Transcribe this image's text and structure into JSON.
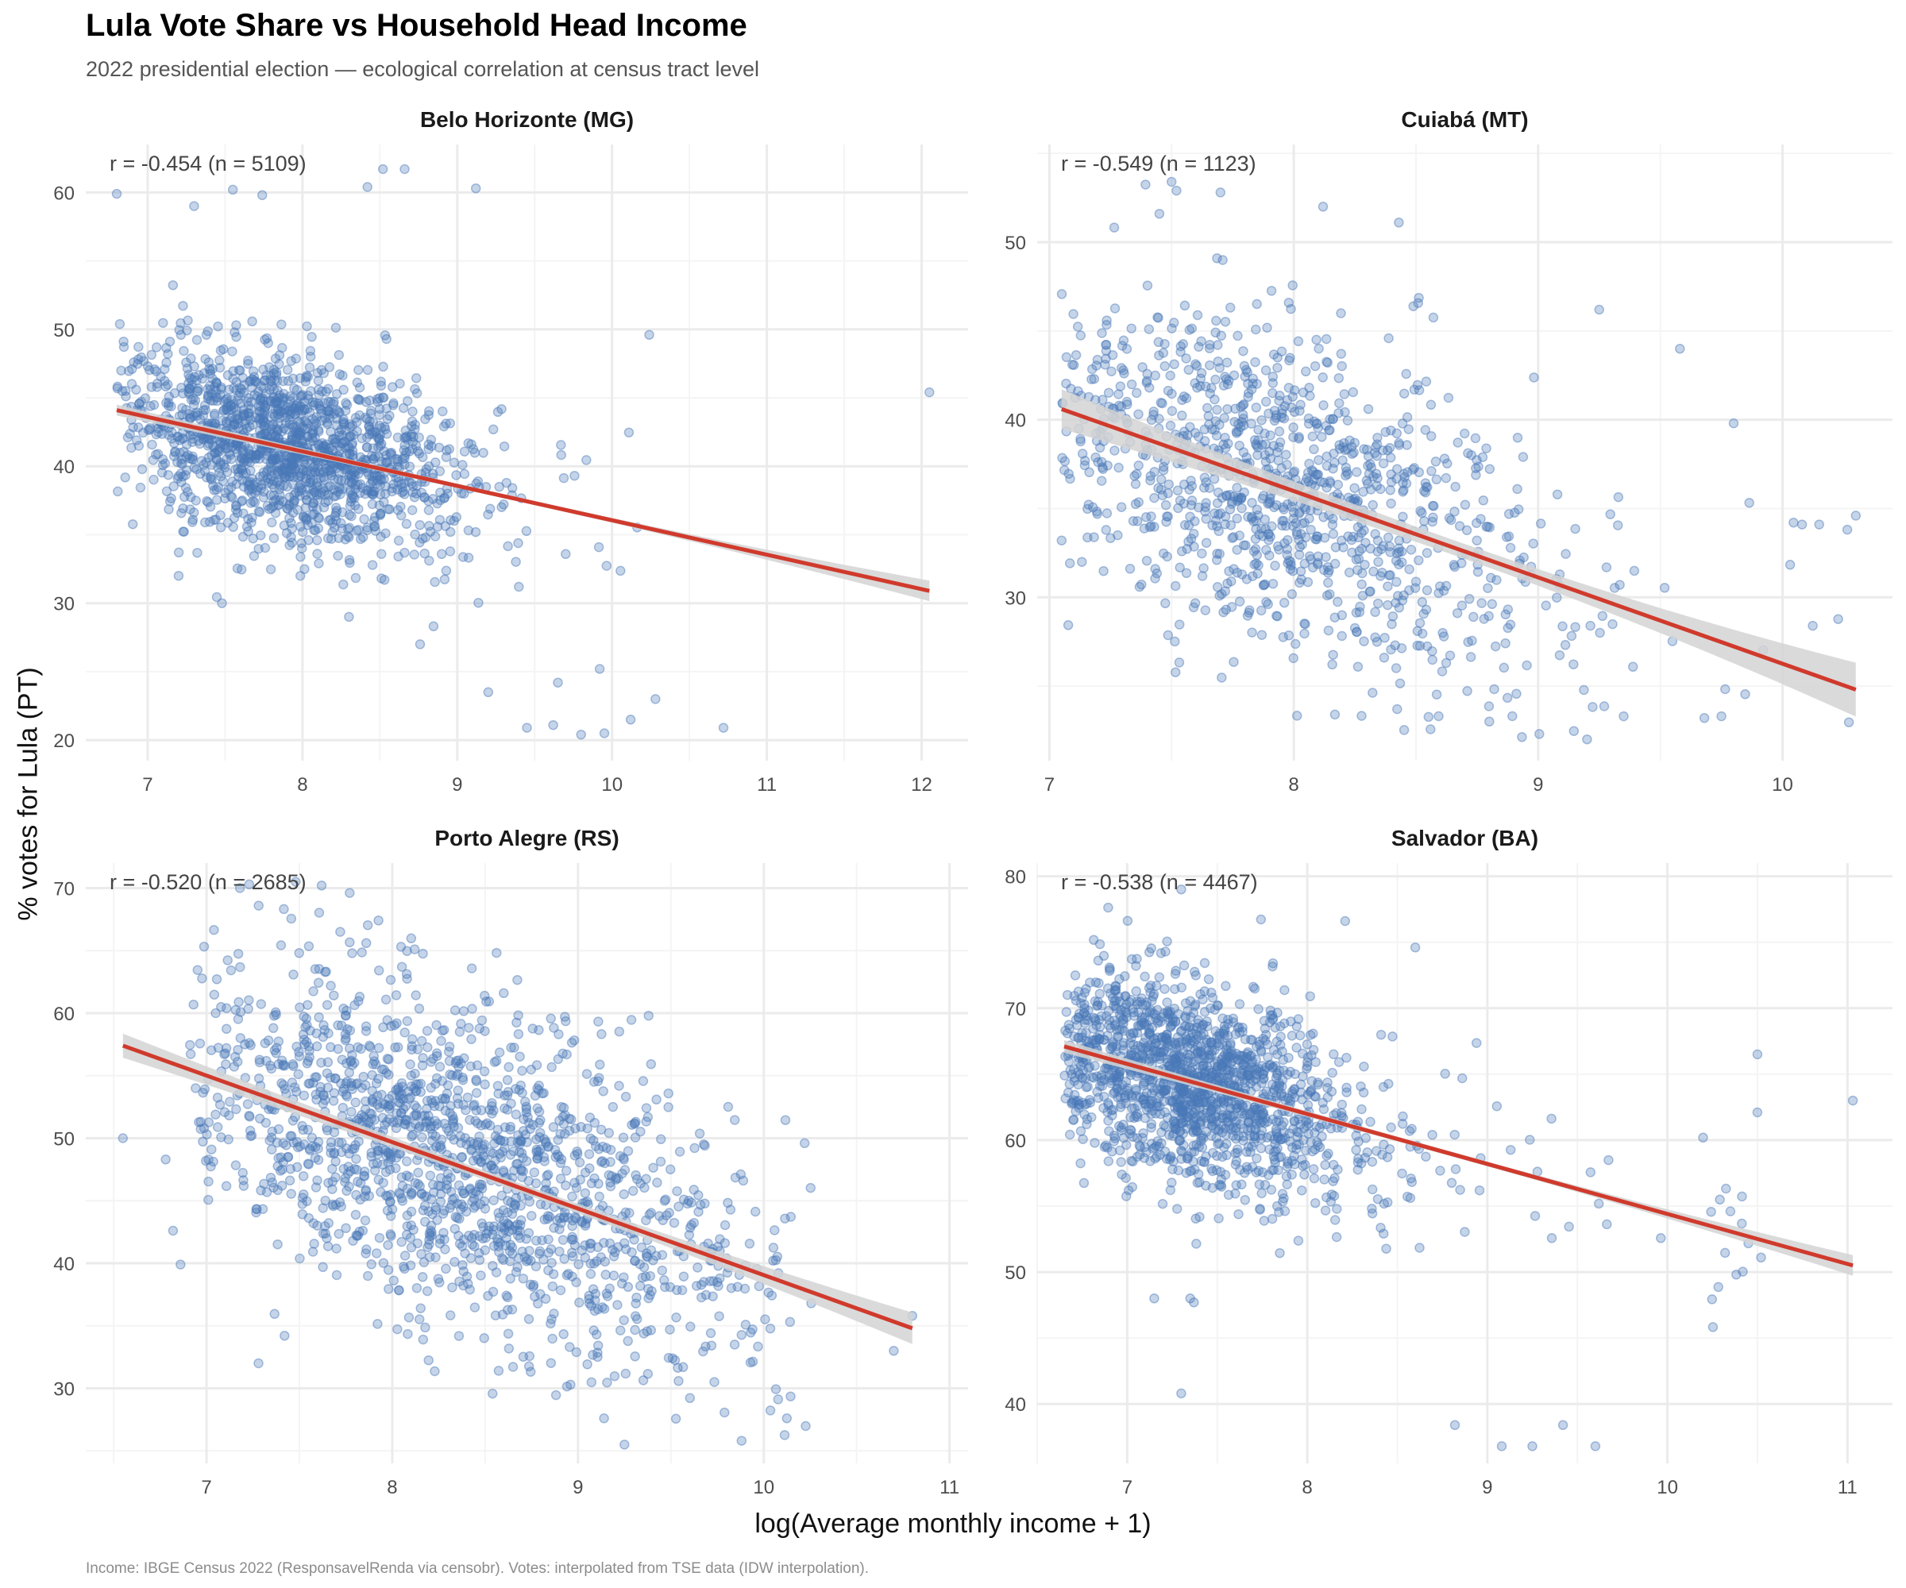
{
  "title": "Lula Vote Share vs Household Head Income",
  "subtitle": "2022 presidential election — ecological correlation at census tract level",
  "caption": "Income: IBGE Census 2022 (ResponsavelRenda via censobr). Votes: interpolated from TSE data (IDW interpolation).",
  "colors": {
    "points": "#4a78b8",
    "fit_line": "#d03a2c",
    "ci_band": "#d4d4d4",
    "grid_major": "#ebebeb",
    "grid_minor": "#f4f4f4"
  },
  "chart_data": [
    {
      "type": "scatter",
      "title": "Belo Horizonte (MG)",
      "annotation": "r = -0.454 (n = 5109)",
      "r": -0.454,
      "n": 5109,
      "xlabel": "log(Average monthly income + 1)",
      "ylabel": "% votes for Lula (PT)",
      "xlim": [
        6.6,
        12.3
      ],
      "ylim": [
        18.5,
        63.5
      ],
      "xticks": [
        7,
        8,
        9,
        10,
        11,
        12
      ],
      "yticks": [
        20,
        30,
        40,
        50,
        60
      ],
      "fit": {
        "x": [
          6.8,
          12.05
        ],
        "y": [
          44.1,
          30.9
        ],
        "ci_halfwidth": [
          0.25,
          0.6
        ]
      },
      "cluster": {
        "x_center": 7.9,
        "x_spread": 0.55,
        "y_spread": 3.2,
        "x_min": 6.8,
        "x_max": 10.2
      },
      "outliers": [
        [
          6.8,
          59.9
        ],
        [
          7.55,
          60.2
        ],
        [
          7.74,
          59.8
        ],
        [
          8.42,
          60.4
        ],
        [
          8.52,
          61.7
        ],
        [
          8.66,
          61.7
        ],
        [
          9.12,
          60.3
        ],
        [
          7.3,
          59
        ],
        [
          10.24,
          49.6
        ],
        [
          12.05,
          45.4
        ],
        [
          7.2,
          32
        ],
        [
          7.48,
          30
        ],
        [
          8.3,
          29
        ],
        [
          8.76,
          27
        ],
        [
          9.2,
          23.5
        ],
        [
          9.8,
          20.4
        ],
        [
          10.72,
          20.9
        ],
        [
          10.28,
          23
        ],
        [
          10.12,
          21.5
        ],
        [
          9.45,
          20.9
        ],
        [
          9.62,
          21.1
        ],
        [
          9.95,
          20.5
        ],
        [
          9.92,
          25.2
        ],
        [
          9.65,
          24.2
        ]
      ]
    },
    {
      "type": "scatter",
      "title": "Cuiabá (MT)",
      "annotation": "r = -0.549 (n = 1123)",
      "r": -0.549,
      "n": 1123,
      "xlim": [
        6.95,
        10.45
      ],
      "ylim": [
        20.8,
        55.5
      ],
      "xticks": [
        7,
        8,
        9,
        10
      ],
      "yticks": [
        30,
        40,
        50
      ],
      "fit": {
        "x": [
          7.05,
          10.3
        ],
        "y": [
          40.6,
          24.8
        ],
        "ci_halfwidth": [
          0.7,
          1.1
        ]
      },
      "cluster": {
        "x_center": 7.95,
        "x_spread": 0.55,
        "y_spread": 4.5,
        "x_min": 7.05,
        "x_max": 10.3
      },
      "outliers": [
        [
          7.5,
          53.4
        ],
        [
          7.52,
          52.9
        ],
        [
          7.7,
          52.8
        ],
        [
          8.12,
          52
        ],
        [
          7.45,
          51.6
        ],
        [
          9.25,
          46.2
        ],
        [
          9.58,
          44
        ],
        [
          9.8,
          39.8
        ],
        [
          10.3,
          34.6
        ],
        [
          10.08,
          34.1
        ],
        [
          10.15,
          34.1
        ],
        [
          7.05,
          33.2
        ],
        [
          9.2,
          22
        ],
        [
          8.8,
          23
        ],
        [
          9.35,
          23.3
        ],
        [
          9.68,
          23.2
        ],
        [
          9.75,
          23.3
        ]
      ]
    },
    {
      "type": "scatter",
      "title": "Porto Alegre (RS)",
      "annotation": "r = -0.520 (n = 2685)",
      "r": -0.52,
      "n": 2685,
      "xlim": [
        6.35,
        11.1
      ],
      "ylim": [
        24,
        72
      ],
      "xticks": [
        7,
        8,
        9,
        10,
        11
      ],
      "yticks": [
        30,
        40,
        50,
        60,
        70
      ],
      "fit": {
        "x": [
          6.55,
          10.8
        ],
        "y": [
          57.4,
          34.8
        ],
        "ci_halfwidth": [
          0.6,
          0.9
        ]
      },
      "cluster": {
        "x_center": 8.35,
        "x_spread": 0.75,
        "y_spread": 6.2,
        "x_min": 6.9,
        "x_max": 10.3
      },
      "outliers": [
        [
          6.55,
          50
        ],
        [
          6.78,
          48.3
        ],
        [
          6.82,
          42.6
        ],
        [
          6.86,
          39.9
        ],
        [
          7.18,
          70
        ],
        [
          7.23,
          70.3
        ],
        [
          7.48,
          70.5
        ],
        [
          7.62,
          70.2
        ],
        [
          7.72,
          66.5
        ],
        [
          7.86,
          65.6
        ],
        [
          8.6,
          61.6
        ],
        [
          9.38,
          59.8
        ],
        [
          10.8,
          35.8
        ],
        [
          10.7,
          33
        ],
        [
          9.25,
          25.5
        ],
        [
          7.28,
          32
        ],
        [
          7.42,
          34.2
        ],
        [
          10.22,
          49.6
        ]
      ]
    },
    {
      "type": "scatter",
      "title": "Salvador (BA)",
      "annotation": "r = -0.538 (n = 4467)",
      "r": -0.538,
      "n": 4467,
      "xlim": [
        6.5,
        11.25
      ],
      "ylim": [
        35.5,
        81
      ],
      "xticks": [
        7,
        8,
        9,
        10,
        11
      ],
      "yticks": [
        40,
        50,
        60,
        70,
        80
      ],
      "fit": {
        "x": [
          6.65,
          11.03
        ],
        "y": [
          67.1,
          50.5
        ],
        "ci_halfwidth": [
          0.3,
          0.6
        ]
      },
      "cluster": {
        "x_center": 7.35,
        "x_spread": 0.45,
        "y_spread": 3.6,
        "x_min": 6.65,
        "x_max": 10.5
      },
      "outliers": [
        [
          7.3,
          79
        ],
        [
          7.3,
          40.8
        ],
        [
          8.6,
          74.6
        ],
        [
          11.03,
          63
        ],
        [
          10.5,
          66.5
        ],
        [
          10.5,
          62.1
        ],
        [
          10.52,
          51.1
        ],
        [
          10.35,
          54.6
        ],
        [
          9.25,
          36.8
        ],
        [
          9.6,
          36.8
        ],
        [
          9.08,
          36.8
        ],
        [
          8.82,
          38.4
        ],
        [
          9.42,
          38.4
        ],
        [
          7.15,
          48
        ],
        [
          7.35,
          48
        ],
        [
          7.37,
          47.7
        ]
      ]
    }
  ]
}
